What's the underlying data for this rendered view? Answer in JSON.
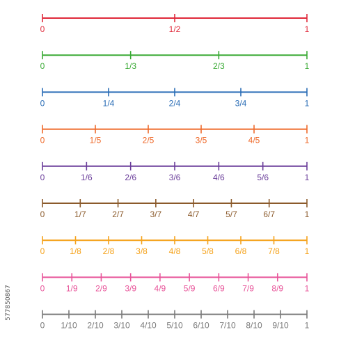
{
  "side_text": "577850867",
  "number_lines": [
    {
      "denominator": 2,
      "color": "#e0293a",
      "labels": [
        "0",
        "1/2",
        "1"
      ]
    },
    {
      "denominator": 3,
      "color": "#3aaa35",
      "labels": [
        "0",
        "1/3",
        "2/3",
        "1"
      ]
    },
    {
      "denominator": 4,
      "color": "#2a6db6",
      "labels": [
        "0",
        "1/4",
        "2/4",
        "3/4",
        "1"
      ]
    },
    {
      "denominator": 5,
      "color": "#ef6a2b",
      "labels": [
        "0",
        "1/5",
        "2/5",
        "3/5",
        "4/5",
        "1"
      ]
    },
    {
      "denominator": 6,
      "color": "#6a3d9a",
      "labels": [
        "0",
        "1/6",
        "2/6",
        "3/6",
        "4/6",
        "5/6",
        "1"
      ]
    },
    {
      "denominator": 7,
      "color": "#8b5a2b",
      "labels": [
        "0",
        "1/7",
        "2/7",
        "3/7",
        "4/7",
        "5/7",
        "6/7",
        "1"
      ]
    },
    {
      "denominator": 8,
      "color": "#f5a21a",
      "labels": [
        "0",
        "1/8",
        "2/8",
        "3/8",
        "4/8",
        "5/8",
        "6/8",
        "7/8",
        "1"
      ]
    },
    {
      "denominator": 9,
      "color": "#e8559a",
      "labels": [
        "0",
        "1/9",
        "2/9",
        "3/9",
        "4/9",
        "5/9",
        "6/9",
        "7/9",
        "8/9",
        "1"
      ]
    },
    {
      "denominator": 10,
      "color": "#7a7a7a",
      "labels": [
        "0",
        "1/10",
        "2/10",
        "3/10",
        "4/10",
        "5/10",
        "6/10",
        "7/10",
        "8/10",
        "9/10",
        "1"
      ]
    }
  ]
}
